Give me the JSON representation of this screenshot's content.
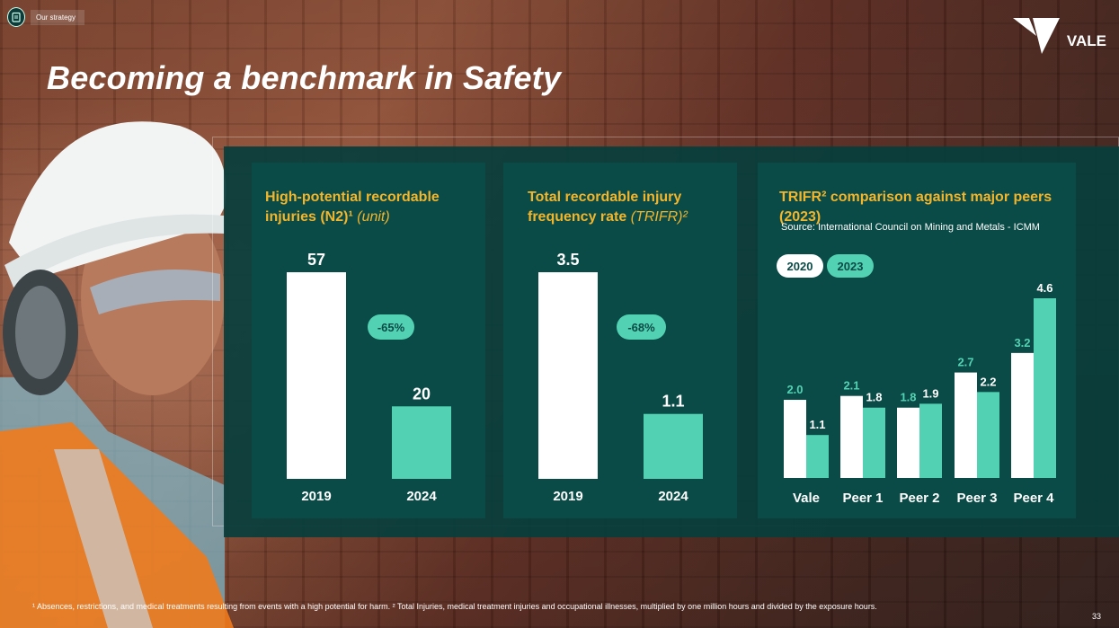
{
  "header": {
    "section_tag": "Our strategy",
    "title": "Becoming a benchmark in Safety",
    "logo_text": "VALE"
  },
  "colors": {
    "panel": "#083e3c",
    "card": "#0b4b47",
    "accent_teal": "#53d2b3",
    "accent_gold": "#f2b52b",
    "white": "#ffffff"
  },
  "cards": [
    {
      "title_main": "High-potential recordable injuries (N2)¹ ",
      "title_italic": "(unit)",
      "badge": "-65%"
    },
    {
      "title_main": "Total recordable injury frequency rate ",
      "title_italic": "(TRIFR)²",
      "badge": "-68%"
    },
    {
      "title_main": "TRIFR² comparison against major peers (2023)",
      "title_italic": "",
      "source": "Source: International Council on Mining and Metals - ICMM"
    }
  ],
  "chart_data": [
    {
      "type": "bar",
      "title": "High-potential recordable injuries (N2)¹ (unit)",
      "categories": [
        "2019",
        "2024"
      ],
      "values": [
        57,
        20
      ],
      "value_labels": [
        "57",
        "20"
      ],
      "bar_colors": [
        "#ffffff",
        "#53d2b3"
      ],
      "annotation": "-65%"
    },
    {
      "type": "bar",
      "title": "Total recordable injury frequency rate (TRIFR)²",
      "categories": [
        "2019",
        "2024"
      ],
      "values": [
        3.5,
        1.1
      ],
      "value_labels": [
        "3.5",
        "1.1"
      ],
      "bar_colors": [
        "#ffffff",
        "#53d2b3"
      ],
      "annotation": "-68%"
    },
    {
      "type": "bar",
      "title": "TRIFR² comparison against major peers (2023)",
      "categories": [
        "Vale",
        "Peer 1",
        "Peer 2",
        "Peer 3",
        "Peer 4"
      ],
      "series": [
        {
          "name": "2020",
          "color": "#ffffff",
          "label_color": "#53d2b3",
          "values": [
            2.0,
            2.1,
            1.8,
            2.7,
            3.2
          ],
          "value_labels": [
            "2.0",
            "2.1",
            "1.8",
            "2.7",
            "3.2"
          ]
        },
        {
          "name": "2023",
          "color": "#53d2b3",
          "label_color": "#ffffff",
          "values": [
            1.1,
            1.8,
            1.9,
            2.2,
            4.6
          ],
          "value_labels": [
            "1.1",
            "1.8",
            "1.9",
            "2.2",
            "4.6"
          ]
        }
      ],
      "legend": "top-left"
    }
  ],
  "footnote": "¹ Absences, restrictions, and medical treatments resulting from events with a high potential for harm. ² Total Injuries, medical treatment injuries and occupational illnesses, multiplied by one million hours and divided by the exposure hours.",
  "page_number": "33"
}
